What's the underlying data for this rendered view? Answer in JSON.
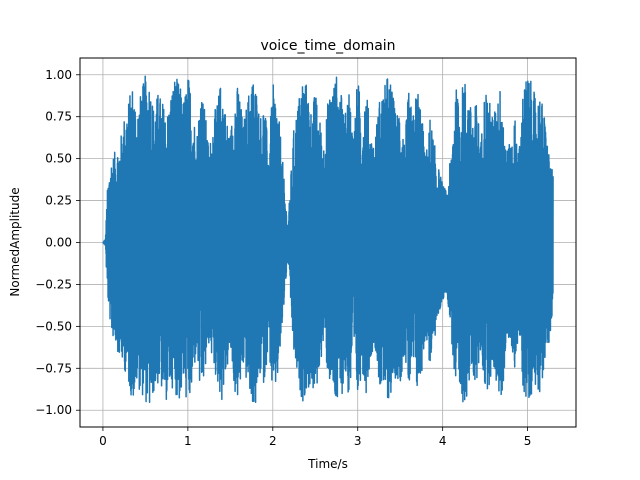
{
  "chart_data": {
    "type": "line",
    "title": "voice_time_domain",
    "xlabel": "Time/s",
    "ylabel": "NormedAmplitude",
    "xlim": [
      -0.27,
      5.57
    ],
    "ylim": [
      -1.1,
      1.1
    ],
    "x_ticks": [
      0,
      1,
      2,
      3,
      4,
      5
    ],
    "y_ticks": [
      -1.0,
      -0.75,
      -0.5,
      -0.25,
      0.0,
      0.25,
      0.5,
      0.75,
      1.0
    ],
    "x_tick_labels": [
      "0",
      "1",
      "2",
      "3",
      "4",
      "5"
    ],
    "y_tick_labels": [
      "−1.00",
      "−0.75",
      "−0.50",
      "−0.25",
      "0.00",
      "0.25",
      "0.50",
      "0.75",
      "1.00"
    ],
    "grid": true,
    "series": [
      {
        "color": "#1f77b4",
        "x_range": [
          0.0,
          5.3
        ],
        "envelope": {
          "t": [
            0.0,
            0.03,
            0.05,
            0.08,
            0.1,
            0.15,
            0.2,
            0.25,
            0.3,
            0.35,
            0.4,
            0.45,
            0.5,
            0.55,
            0.6,
            0.65,
            0.7,
            0.75,
            0.8,
            0.85,
            0.9,
            0.95,
            1.0,
            1.05,
            1.1,
            1.15,
            1.2,
            1.25,
            1.3,
            1.35,
            1.4,
            1.45,
            1.5,
            1.55,
            1.6,
            1.65,
            1.7,
            1.75,
            1.8,
            1.85,
            1.9,
            1.95,
            2.0,
            2.05,
            2.1,
            2.15,
            2.18,
            2.2,
            2.25,
            2.3,
            2.35,
            2.4,
            2.45,
            2.5,
            2.55,
            2.6,
            2.65,
            2.7,
            2.75,
            2.8,
            2.85,
            2.9,
            2.95,
            3.0,
            3.05,
            3.1,
            3.15,
            3.2,
            3.25,
            3.3,
            3.35,
            3.4,
            3.45,
            3.5,
            3.55,
            3.6,
            3.65,
            3.7,
            3.75,
            3.8,
            3.85,
            3.9,
            3.95,
            4.0,
            4.05,
            4.1,
            4.15,
            4.2,
            4.25,
            4.3,
            4.35,
            4.4,
            4.45,
            4.5,
            4.55,
            4.6,
            4.65,
            4.7,
            4.75,
            4.8,
            4.85,
            4.9,
            4.95,
            5.0,
            5.05,
            5.1,
            5.15,
            5.2,
            5.25,
            5.3
          ],
          "upper": [
            0.0,
            0.02,
            0.3,
            0.45,
            0.5,
            0.55,
            0.6,
            0.75,
            0.85,
            0.95,
            0.8,
            0.9,
            1.0,
            0.98,
            0.8,
            0.9,
            0.85,
            0.75,
            0.9,
            1.0,
            0.95,
            0.85,
            1.0,
            0.9,
            0.6,
            0.95,
            0.8,
            0.55,
            0.75,
            0.85,
            1.0,
            0.75,
            0.65,
            0.9,
            0.95,
            0.7,
            0.85,
            1.0,
            0.95,
            0.75,
            0.85,
            0.55,
            0.95,
            0.85,
            0.6,
            0.25,
            0.1,
            0.3,
            0.7,
            0.85,
            1.0,
            0.95,
            0.8,
            0.9,
            0.75,
            0.6,
            0.85,
            0.95,
            1.0,
            0.9,
            0.75,
            0.95,
            0.65,
            1.0,
            0.75,
            0.95,
            0.65,
            0.6,
            0.85,
            0.9,
            1.0,
            0.95,
            0.75,
            0.85,
            0.6,
            0.9,
            0.75,
            0.95,
            0.8,
            0.5,
            0.75,
            0.6,
            0.45,
            0.35,
            0.3,
            0.55,
            0.95,
            0.8,
            1.0,
            0.9,
            0.75,
            0.85,
            0.6,
            0.95,
            0.85,
            0.75,
            0.9,
            0.95,
            0.55,
            0.6,
            0.75,
            0.55,
            0.95,
            1.0,
            0.95,
            0.85,
            0.9,
            0.75,
            0.55,
            0.4
          ],
          "lower": [
            0.0,
            -0.02,
            -0.3,
            -0.45,
            -0.55,
            -0.6,
            -0.7,
            -0.75,
            -0.85,
            -0.95,
            -0.85,
            -0.9,
            -0.95,
            -1.0,
            -0.9,
            -0.85,
            -0.9,
            -0.95,
            -0.85,
            -0.9,
            -0.95,
            -0.85,
            -1.0,
            -0.9,
            -0.65,
            -0.95,
            -0.8,
            -0.6,
            -0.75,
            -0.85,
            -0.95,
            -0.8,
            -0.65,
            -0.9,
            -0.95,
            -0.75,
            -0.85,
            -0.95,
            -1.0,
            -0.8,
            -0.85,
            -0.6,
            -0.95,
            -0.85,
            -0.6,
            -0.25,
            -0.1,
            -0.3,
            -0.7,
            -0.85,
            -0.95,
            -0.9,
            -0.85,
            -0.95,
            -0.75,
            -0.6,
            -0.8,
            -0.9,
            -1.0,
            -0.95,
            -0.8,
            -0.95,
            -0.7,
            -0.95,
            -0.75,
            -0.9,
            -0.7,
            -0.6,
            -0.85,
            -0.9,
            -0.95,
            -0.9,
            -0.8,
            -0.85,
            -0.65,
            -0.9,
            -0.75,
            -0.9,
            -0.8,
            -0.55,
            -0.75,
            -0.6,
            -0.45,
            -0.35,
            -0.3,
            -0.55,
            -0.9,
            -1.0,
            -0.95,
            -0.9,
            -0.8,
            -0.85,
            -0.65,
            -0.9,
            -0.85,
            -0.75,
            -0.9,
            -0.95,
            -0.6,
            -0.6,
            -0.75,
            -0.55,
            -0.9,
            -0.95,
            -0.9,
            -0.85,
            -0.9,
            -0.75,
            -0.6,
            -0.45
          ]
        }
      }
    ]
  }
}
